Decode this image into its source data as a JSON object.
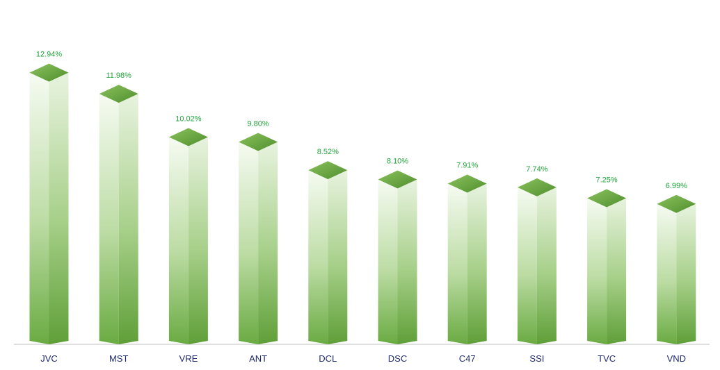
{
  "chart_data": {
    "type": "bar",
    "categories": [
      "JVC",
      "MST",
      "VRE",
      "ANT",
      "DCL",
      "DSC",
      "C47",
      "SSI",
      "TVC",
      "VND"
    ],
    "values": [
      12.94,
      11.98,
      10.02,
      9.8,
      8.52,
      8.1,
      7.91,
      7.74,
      7.25,
      6.99
    ],
    "value_labels": [
      "12.94%",
      "11.98%",
      "10.02%",
      "9.80%",
      "8.52%",
      "8.10%",
      "7.91%",
      "7.74%",
      "7.25%",
      "6.99%"
    ],
    "title": "",
    "xlabel": "",
    "ylabel": "",
    "ylim": [
      0,
      13.4
    ],
    "grid": false,
    "legend": "none",
    "style": "3d-prism"
  },
  "colors": {
    "bar_light": "#f4f9ef",
    "bar_dark": "#6aab42",
    "bar_top": "#70ad47",
    "bar_top_dark": "#4f8f2c",
    "value_label": "#1fa53a",
    "category_label": "#1f2a6b",
    "axis_line": "#bfbfbf"
  }
}
